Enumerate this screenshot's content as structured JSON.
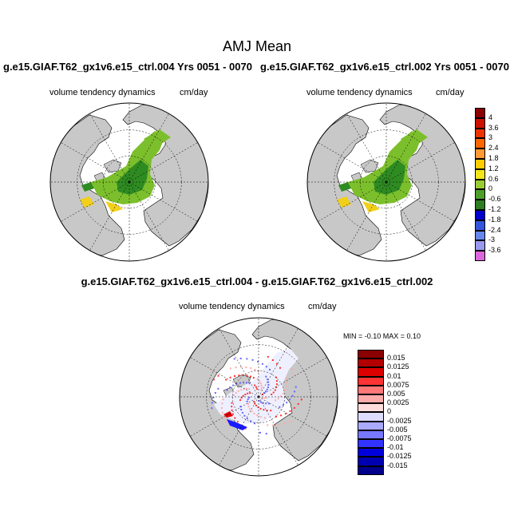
{
  "figure": {
    "title": "AMJ Mean",
    "panel_left_title": "g.e15.GIAF.T62_gx1v6.e15_ctrl.004  Yrs 0051 - 0070",
    "panel_right_title": "g.e15.GIAF.T62_gx1v6.e15_ctrl.002  Yrs 0051 - 0070",
    "diff_title": "g.e15.GIAF.T62_gx1v6.e15_ctrl.004 - g.e15.GIAF.T62_gx1v6.e15_ctrl.002",
    "variable": "volume tendency dynamics",
    "units": "cm/day",
    "minmax": "MIN =  -0.10 MAX =   0.10"
  },
  "colors": {
    "land": "#c8c8c8",
    "ocean": "#ffffff",
    "green_dark": "#2e8b22",
    "green_light": "#7cbf2c",
    "yellow": "#f2d01a"
  },
  "chart_data": [
    {
      "type": "heatmap",
      "projection": "north polar stereographic",
      "panel": "ctrl.004",
      "colorbar": {
        "labels": [
          "4",
          "3.6",
          "3",
          "2.4",
          "1.8",
          "1.2",
          "0.6",
          "0",
          "-0.6",
          "-1.2",
          "-1.8",
          "-2.4",
          "-3",
          "-3.6"
        ],
        "colors": [
          "#8b0000",
          "#cc1100",
          "#ee3300",
          "#ff6600",
          "#ff9933",
          "#ffcc00",
          "#f2e61a",
          "#99cc33",
          "#4d9e2a",
          "#2e7d22",
          "#0000cc",
          "#3355dd",
          "#6688ee",
          "#9999ee",
          "#dd66dd"
        ]
      }
    },
    {
      "type": "heatmap",
      "projection": "north polar stereographic",
      "panel": "ctrl.002"
    },
    {
      "type": "heatmap",
      "projection": "north polar stereographic",
      "panel": "difference",
      "colorbar": {
        "labels": [
          "0.015",
          "0.0125",
          "0.01",
          "0.0075",
          "0.005",
          "0.0025",
          "0",
          "-0.0025",
          "-0.005",
          "-0.0075",
          "-0.01",
          "-0.0125",
          "-0.015"
        ],
        "colors": [
          "#8b0000",
          "#b30000",
          "#dd0000",
          "#ff3333",
          "#ff7777",
          "#ffaaaa",
          "#ffdddd",
          "#ddddff",
          "#aaaaff",
          "#7777ff",
          "#3333ff",
          "#0000dd",
          "#0000b3",
          "#00008b"
        ]
      }
    }
  ]
}
